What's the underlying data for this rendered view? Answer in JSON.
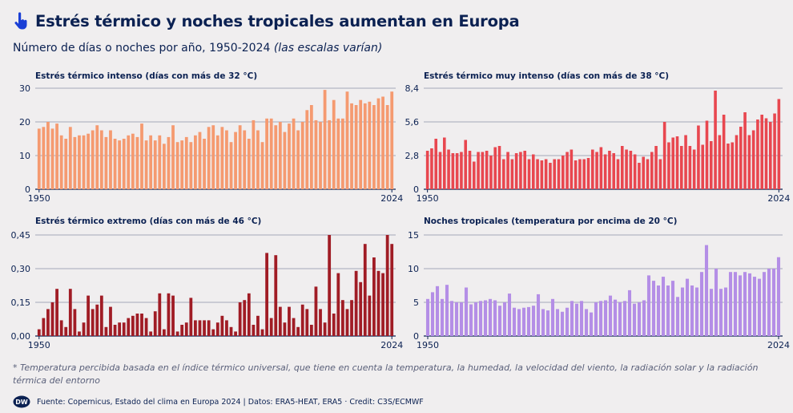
{
  "header": {
    "title": "Estrés térmico y noches tropicales aumentan en Europa",
    "subtitle_main": "Número de días o noches por año, 1950-2024 ",
    "subtitle_italic": "(las escalas varían)"
  },
  "note": "* Temperatura percibida basada en el índice térmico universal, que tiene en cuenta la temperatura, la humedad, la velocidad del viento, la radiación solar y la radiación térmica del entorno",
  "source": "Fuente: Copernicus, Estado del clima en Europa 2024 | Datos: ERA5-HEAT, ERA5 · Credit: C3S/ECMWF",
  "logo_text": "DW",
  "chart_data": [
    {
      "type": "bar",
      "title": "Estrés térmico intenso (días con más de 32 °C)",
      "color": "#f59a70",
      "x_start": 1950,
      "x_end": 2024,
      "x_tick_labels": [
        "1950",
        "2024"
      ],
      "ylim": [
        0,
        30
      ],
      "y_ticks": [
        0,
        10,
        20,
        30
      ],
      "y_tick_labels": [
        "0",
        "10",
        "20",
        "30"
      ],
      "grid": true,
      "values": [
        18,
        18.5,
        20,
        18,
        19.5,
        16,
        15,
        18.5,
        15.5,
        16,
        16,
        16.5,
        17.5,
        19,
        17.5,
        15.5,
        17.5,
        15,
        14.5,
        15,
        16,
        16.5,
        15.5,
        19.5,
        14.5,
        16,
        14.5,
        16,
        13.5,
        15.5,
        19,
        14,
        14.5,
        15.5,
        14,
        16,
        17,
        15,
        18.5,
        19,
        16,
        18.5,
        17.5,
        14,
        17,
        19,
        17.5,
        15,
        20.5,
        17.5,
        14,
        21,
        21,
        19,
        20,
        17,
        19.5,
        21,
        17.5,
        20,
        23.5,
        25,
        20.5,
        20,
        29.5,
        20.5,
        26.5,
        21,
        21,
        29,
        25.5,
        25,
        26.5,
        25.5,
        26,
        25,
        27,
        27.5,
        25,
        29
      ]
    },
    {
      "type": "bar",
      "title": "Estrés térmico muy intenso (días con más de 38 °C)",
      "color": "#e8474f",
      "x_start": 1950,
      "x_end": 2024,
      "x_tick_labels": [
        "1950",
        "2024"
      ],
      "ylim": [
        0,
        8.4
      ],
      "y_ticks": [
        0,
        2.8,
        5.6,
        8.4
      ],
      "y_tick_labels": [
        "0",
        "2,8",
        "5,6",
        "8,4"
      ],
      "grid": true,
      "values": [
        3.2,
        3.4,
        4.2,
        3.1,
        4.3,
        3.3,
        3.0,
        3.0,
        3.1,
        4.1,
        3.2,
        2.3,
        3.1,
        3.1,
        3.2,
        2.8,
        3.5,
        3.6,
        2.5,
        3.1,
        2.5,
        3.0,
        3.1,
        3.2,
        2.5,
        2.9,
        2.5,
        2.4,
        2.5,
        2.2,
        2.5,
        2.5,
        2.8,
        3.1,
        3.3,
        2.4,
        2.5,
        2.5,
        2.6,
        3.3,
        3.1,
        3.5,
        2.9,
        3.2,
        3.0,
        2.5,
        3.6,
        3.3,
        3.2,
        2.9,
        2.2,
        2.7,
        2.5,
        3.1,
        3.6,
        2.5,
        5.6,
        3.9,
        4.3,
        4.4,
        3.6,
        4.5,
        3.6,
        3.3,
        5.3,
        3.7,
        5.7,
        4.0,
        8.2,
        4.5,
        6.2,
        3.8,
        3.9,
        4.5,
        5.2,
        6.4,
        4.5,
        4.9,
        5.8,
        6.2,
        5.9,
        5.6,
        6.3,
        7.5
      ]
    },
    {
      "type": "bar",
      "title": "Estrés térmico extremo (días con más de 46 °C)",
      "color": "#a01c25",
      "x_start": 1950,
      "x_end": 2024,
      "x_tick_labels": [
        "1950",
        "2024"
      ],
      "ylim": [
        0,
        0.45
      ],
      "y_ticks": [
        0,
        0.15,
        0.3,
        0.45
      ],
      "y_tick_labels": [
        "0,00",
        "0,15",
        "0,30",
        "0,45"
      ],
      "grid": true,
      "values": [
        0.03,
        0.08,
        0.12,
        0.15,
        0.21,
        0.07,
        0.04,
        0.21,
        0.12,
        0.02,
        0.06,
        0.18,
        0.12,
        0.14,
        0.18,
        0.04,
        0.13,
        0.05,
        0.06,
        0.06,
        0.08,
        0.09,
        0.1,
        0.1,
        0.08,
        0.02,
        0.11,
        0.19,
        0.03,
        0.19,
        0.18,
        0.02,
        0.05,
        0.06,
        0.17,
        0.07,
        0.07,
        0.07,
        0.07,
        0.03,
        0.06,
        0.09,
        0.07,
        0.04,
        0.02,
        0.15,
        0.16,
        0.19,
        0.05,
        0.09,
        0.03,
        0.37,
        0.08,
        0.36,
        0.13,
        0.06,
        0.13,
        0.08,
        0.04,
        0.14,
        0.12,
        0.05,
        0.22,
        0.12,
        0.06,
        0.45,
        0.1,
        0.28,
        0.16,
        0.12,
        0.16,
        0.29,
        0.24,
        0.41,
        0.18,
        0.35,
        0.29,
        0.28,
        0.45,
        0.41
      ]
    },
    {
      "type": "bar",
      "title": "Noches tropicales (temperatura por encima de 20 °C)",
      "color": "#b48ee6",
      "x_start": 1950,
      "x_end": 2024,
      "x_tick_labels": [
        "1950",
        "2024"
      ],
      "ylim": [
        0,
        15
      ],
      "y_ticks": [
        0,
        5,
        10,
        15
      ],
      "y_tick_labels": [
        "0",
        "5",
        "10",
        "15"
      ],
      "grid": true,
      "values": [
        5.5,
        6.5,
        7.4,
        5.5,
        7.6,
        5.2,
        5.0,
        5.0,
        7.2,
        4.7,
        5.0,
        5.2,
        5.3,
        5.5,
        5.3,
        4.5,
        5.0,
        6.3,
        4.2,
        4.0,
        4.2,
        4.3,
        4.5,
        6.2,
        4.0,
        3.8,
        5.5,
        4.0,
        3.6,
        4.2,
        5.2,
        4.8,
        5.2,
        4.0,
        3.5,
        5.0,
        5.2,
        5.3,
        6.0,
        5.4,
        5.0,
        5.2,
        6.8,
        4.8,
        5.0,
        5.3,
        9.0,
        8.2,
        7.5,
        8.8,
        7.5,
        8.2,
        5.8,
        7.2,
        8.5,
        7.5,
        7.2,
        9.5,
        13.5,
        7.0,
        10.0,
        7.0,
        7.2,
        9.5,
        9.5,
        9.0,
        9.5,
        9.3,
        8.8,
        8.5,
        9.5,
        10.0,
        10.0,
        11.7
      ]
    }
  ]
}
